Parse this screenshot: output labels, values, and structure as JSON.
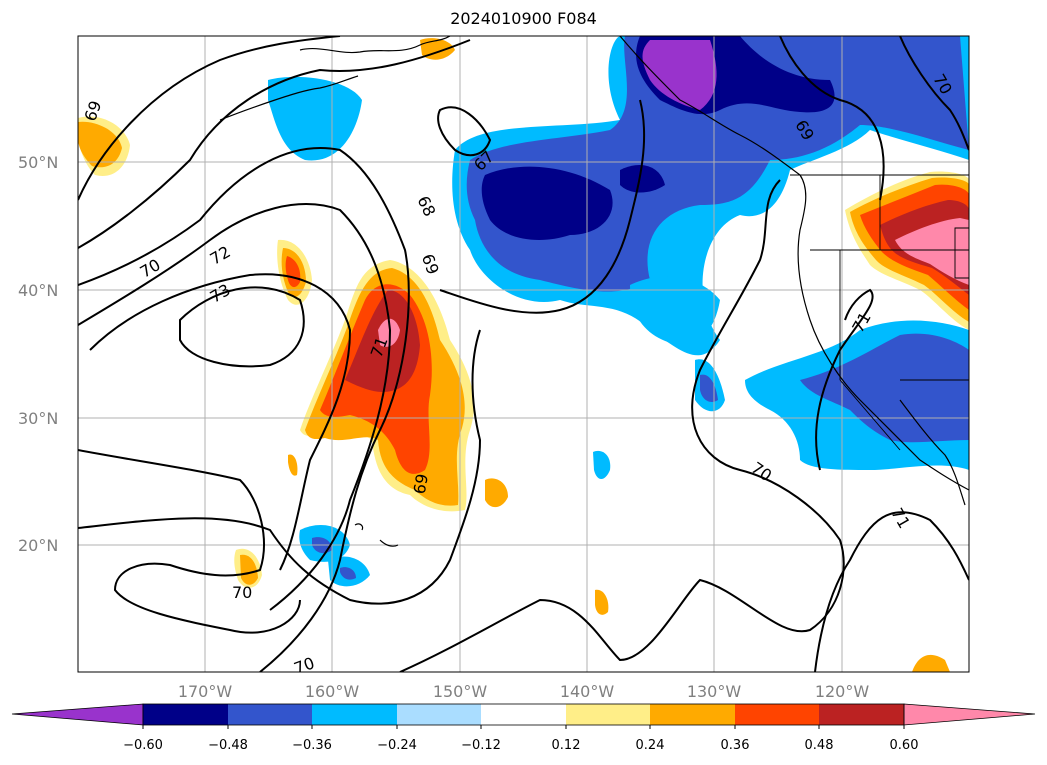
{
  "title": "2024010900 F084",
  "map": {
    "lat_labels": [
      "50°N",
      "40°N",
      "30°N",
      "20°N"
    ],
    "lon_labels": [
      "170°W",
      "160°W",
      "150°W",
      "140°W",
      "130°W",
      "120°W"
    ],
    "contour_labels": [
      "69",
      "67",
      "68",
      "69",
      "72",
      "73",
      "70",
      "71",
      "69",
      "70",
      "70",
      "70",
      "71",
      "69",
      "70",
      "71"
    ]
  },
  "colorbar": {
    "colors": [
      "#9933cc",
      "#000088",
      "#3355cc",
      "#00bbff",
      "#aaddff",
      "#ffffff",
      "#ffee88",
      "#ffaa00",
      "#ff4400",
      "#bb2222",
      "#ff88aa"
    ],
    "tick_labels": [
      "−0.60",
      "−0.48",
      "−0.36",
      "−0.24",
      "−0.12",
      "0.12",
      "0.24",
      "0.36",
      "0.48",
      "0.60"
    ]
  }
}
